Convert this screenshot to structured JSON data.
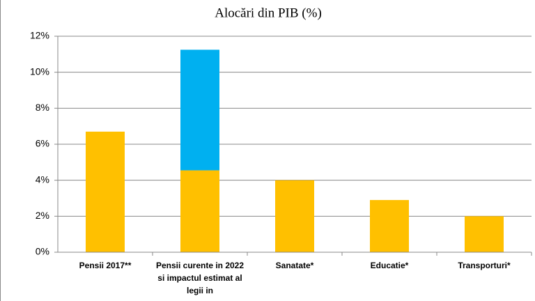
{
  "chart_data": {
    "type": "stacked-bar",
    "title": "Alocări din PIB (%)",
    "categories": [
      "Pensii 2017**",
      "Pensii curente in 2022 si impactul estimat al legii in",
      "Sanatate*",
      "Educatie*",
      "Transporturi*"
    ],
    "series": [
      {
        "color": "#ffc000",
        "values": [
          6.7,
          4.55,
          4.0,
          2.9,
          2.0
        ]
      },
      {
        "color": "#00b0f0",
        "values": [
          null,
          6.7,
          null,
          null,
          null
        ]
      }
    ],
    "ylim": [
      0,
      12
    ],
    "yticks": [
      {
        "value": 0,
        "label": "0%"
      },
      {
        "value": 2,
        "label": "2%"
      },
      {
        "value": 4,
        "label": "4%"
      },
      {
        "value": 6,
        "label": "6%"
      },
      {
        "value": 8,
        "label": "8%"
      },
      {
        "value": 10,
        "label": "10%"
      },
      {
        "value": 12,
        "label": "12%"
      }
    ],
    "grid": true
  }
}
